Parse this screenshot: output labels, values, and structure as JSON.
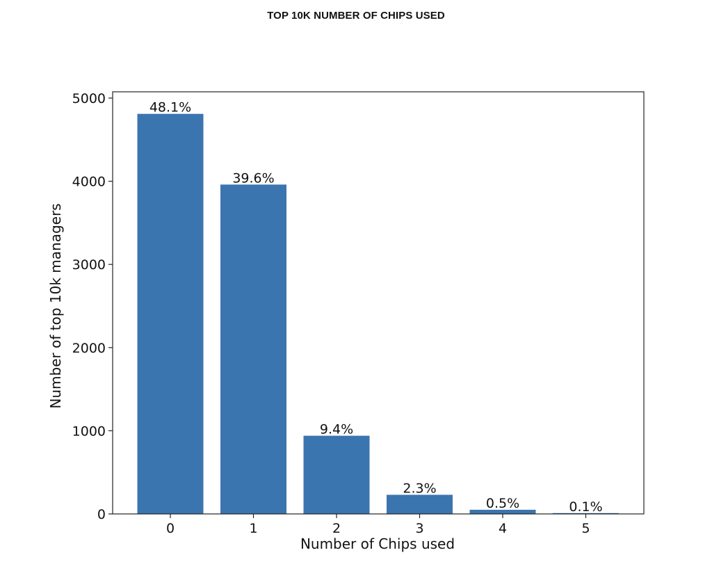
{
  "chart_data": {
    "type": "bar",
    "title": "TOP 10K NUMBER OF CHIPS USED",
    "xlabel": "Number of Chips used",
    "ylabel": "Number of top 10k managers",
    "categories": [
      "0",
      "1",
      "2",
      "3",
      "4",
      "5"
    ],
    "values": [
      4810,
      3960,
      940,
      230,
      50,
      10
    ],
    "data_labels": [
      "48.1%",
      "39.6%",
      "9.4%",
      "2.3%",
      "0.5%",
      "0.1%"
    ],
    "ylim": [
      0,
      5000
    ],
    "yticks": [
      "0",
      "1000",
      "2000",
      "3000",
      "4000",
      "5000"
    ],
    "bar_color": "#3b75af",
    "grid": false,
    "legend": "none"
  }
}
